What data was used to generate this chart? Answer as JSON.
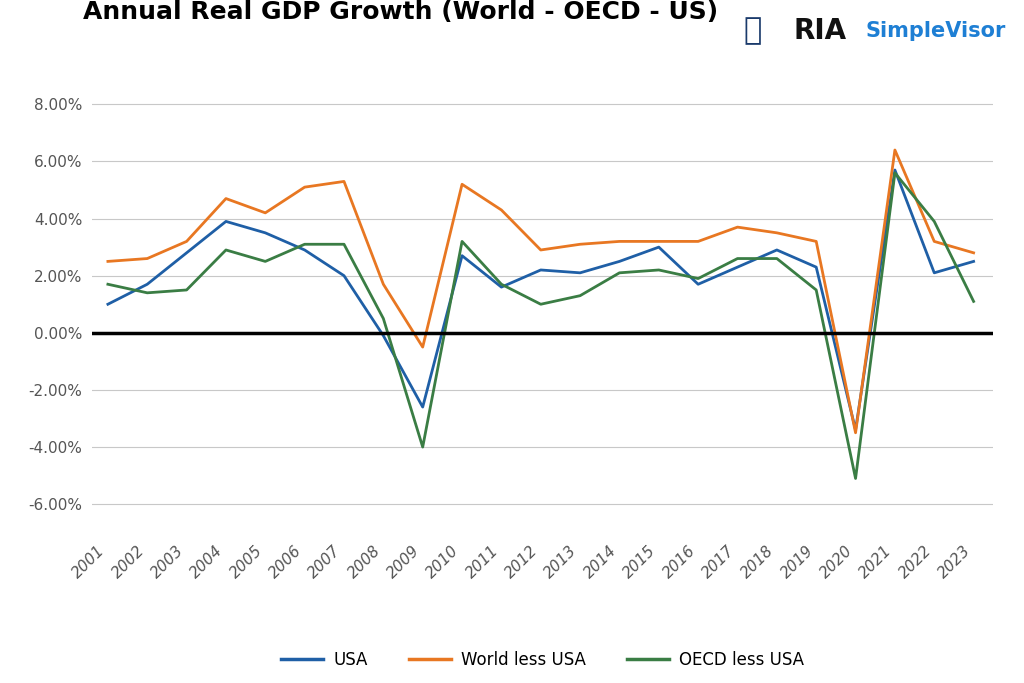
{
  "title": "Annual Real GDP Growth (World - OECD - US)",
  "years": [
    2001,
    2002,
    2003,
    2004,
    2005,
    2006,
    2007,
    2008,
    2009,
    2010,
    2011,
    2012,
    2013,
    2014,
    2015,
    2016,
    2017,
    2018,
    2019,
    2020,
    2021,
    2022,
    2023
  ],
  "usa": [
    1.0,
    1.7,
    2.8,
    3.9,
    3.5,
    2.9,
    2.0,
    -0.1,
    -2.6,
    2.7,
    1.6,
    2.2,
    2.1,
    2.5,
    3.0,
    1.7,
    2.3,
    2.9,
    2.3,
    -3.4,
    5.7,
    2.1,
    2.5
  ],
  "world_less_usa": [
    2.5,
    2.6,
    3.2,
    4.7,
    4.2,
    5.1,
    5.3,
    1.7,
    -0.5,
    5.2,
    4.3,
    2.9,
    3.1,
    3.2,
    3.2,
    3.2,
    3.7,
    3.5,
    3.2,
    -3.5,
    6.4,
    3.2,
    2.8
  ],
  "oecd_less_usa": [
    1.7,
    1.4,
    1.5,
    2.9,
    2.5,
    3.1,
    3.1,
    0.5,
    -4.0,
    3.2,
    1.7,
    1.0,
    1.3,
    2.1,
    2.2,
    1.9,
    2.6,
    2.6,
    1.5,
    -5.1,
    5.6,
    3.9,
    1.1
  ],
  "usa_color": "#1f5fa6",
  "world_color": "#e87722",
  "oecd_color": "#3a7d44",
  "background_color": "#ffffff",
  "grid_color": "#c8c8c8",
  "ylim": [
    -7.0,
    9.5
  ],
  "yticks": [
    -6.0,
    -4.0,
    -2.0,
    0.0,
    2.0,
    4.0,
    6.0,
    8.0
  ],
  "legend_labels": [
    "USA",
    "World less USA",
    "OECD less USA"
  ],
  "line_width": 2.0,
  "ria_color": "#1a1a2e",
  "simplevisor_color": "#1e7fd4",
  "tick_color": "#555555",
  "title_fontsize": 18,
  "axis_fontsize": 11
}
